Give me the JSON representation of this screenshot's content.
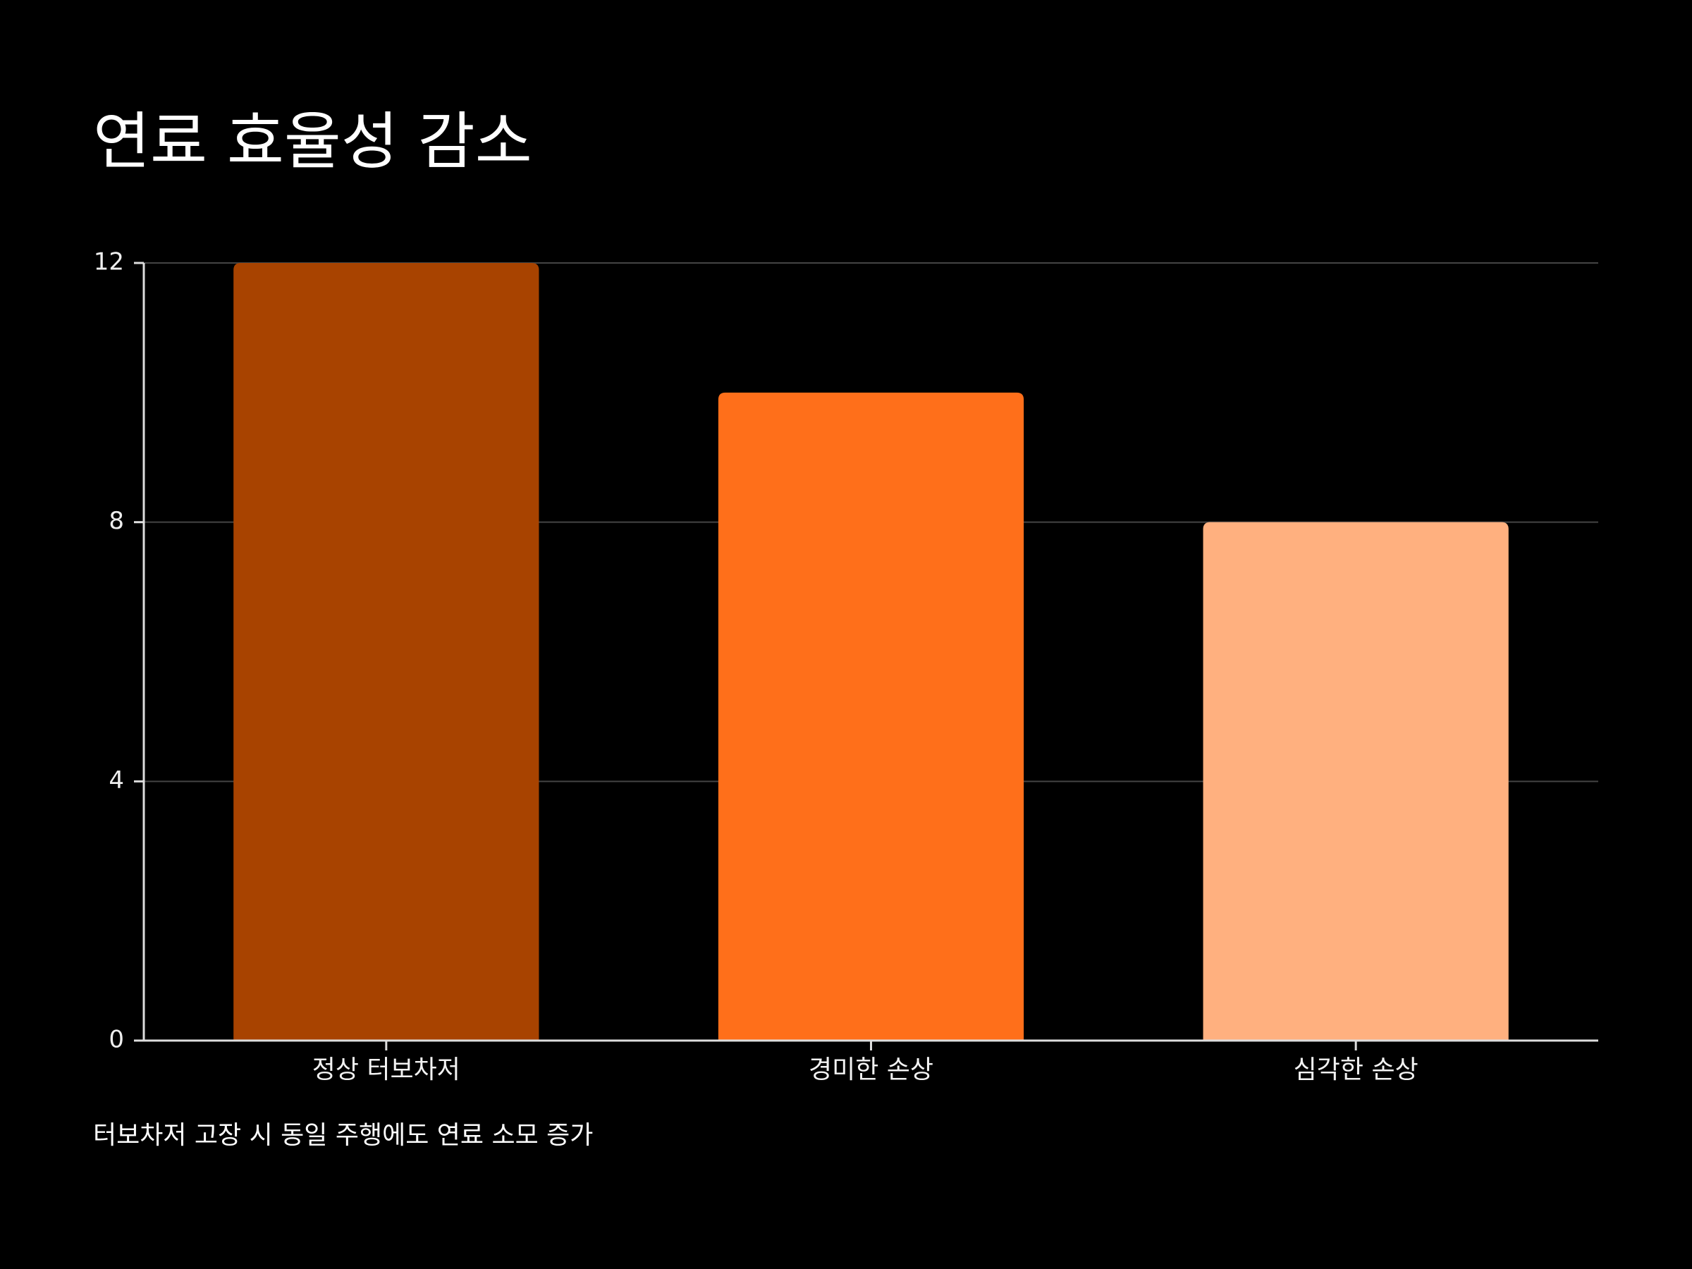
{
  "chart_data": {
    "type": "bar",
    "title": "연료 효율성 감소",
    "subtitle": "터보차저 고장 시 동일 주행에도 연료 소모 증가",
    "categories": [
      "정상 터보차저",
      "경미한 손상",
      "심각한 손상"
    ],
    "values": [
      12,
      10,
      8
    ],
    "colors": [
      "#a84300",
      "#ff6f1a",
      "#ffb07f"
    ],
    "ylim": [
      0,
      12
    ],
    "yticks": [
      0,
      4,
      8,
      12
    ],
    "grid": true
  }
}
